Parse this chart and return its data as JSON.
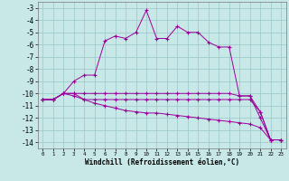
{
  "xlabel": "Windchill (Refroidissement éolien,°C)",
  "line_color": "#990099",
  "bg_color": "#c8e8e8",
  "grid_color": "#a0cccc",
  "xlim": [
    -0.5,
    23.5
  ],
  "ylim": [
    -14.5,
    -2.5
  ],
  "yticks": [
    -14,
    -13,
    -12,
    -11,
    -10,
    -9,
    -8,
    -7,
    -6,
    -5,
    -4,
    -3
  ],
  "xticks": [
    0,
    1,
    2,
    3,
    4,
    5,
    6,
    7,
    8,
    9,
    10,
    11,
    12,
    13,
    14,
    15,
    16,
    17,
    18,
    19,
    20,
    21,
    22,
    23
  ],
  "s0_y": [
    -10.5,
    -10.5,
    -10.0,
    -9.0,
    -8.5,
    -8.5,
    -5.7,
    -5.3,
    -5.5,
    -5.0,
    -3.2,
    -5.5,
    -5.5,
    -4.5,
    -5.0,
    -5.0,
    -5.8,
    -6.2,
    -6.2,
    -10.2,
    -10.2,
    -12.0,
    -13.8,
    -13.8
  ],
  "s1_y": [
    -10.5,
    -10.5,
    -10.0,
    -10.0,
    -10.0,
    -10.0,
    -10.0,
    -10.0,
    -10.0,
    -10.0,
    -10.0,
    -10.0,
    -10.0,
    -10.0,
    -10.0,
    -10.0,
    -10.0,
    -10.0,
    -10.0,
    -10.2,
    -10.2,
    -11.5,
    -13.8,
    -13.8
  ],
  "s2_y": [
    -10.5,
    -10.5,
    -10.0,
    -10.0,
    -10.5,
    -10.5,
    -10.5,
    -10.5,
    -10.5,
    -10.5,
    -10.5,
    -10.5,
    -10.5,
    -10.5,
    -10.5,
    -10.5,
    -10.5,
    -10.5,
    -10.5,
    -10.5,
    -10.5,
    -11.5,
    -13.8,
    -13.8
  ],
  "s3_y": [
    -10.5,
    -10.5,
    -10.0,
    -10.2,
    -10.5,
    -10.8,
    -11.0,
    -11.2,
    -11.4,
    -11.5,
    -11.6,
    -11.6,
    -11.7,
    -11.8,
    -11.9,
    -12.0,
    -12.1,
    -12.2,
    -12.3,
    -12.4,
    -12.5,
    -12.8,
    -13.8,
    -13.8
  ]
}
